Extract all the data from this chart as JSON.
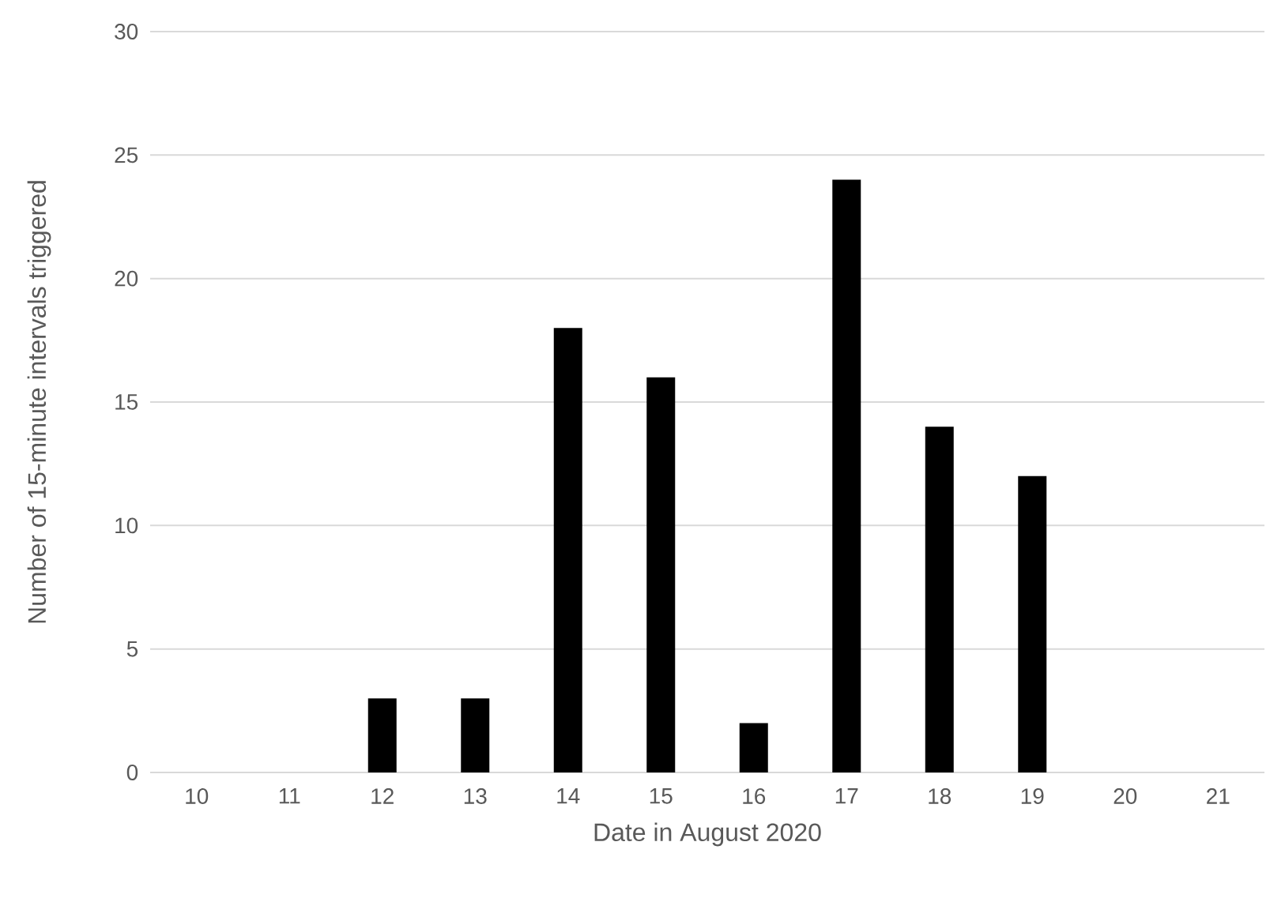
{
  "chart_data": {
    "type": "bar",
    "xlabel": "Date in August 2020",
    "ylabel": "Number of 15-minute intervals triggered",
    "categories": [
      "10",
      "11",
      "12",
      "13",
      "14",
      "15",
      "16",
      "17",
      "18",
      "19",
      "20",
      "21"
    ],
    "values": [
      0,
      0,
      3,
      3,
      18,
      16,
      2,
      24,
      14,
      12,
      0,
      0
    ],
    "color": "#000000",
    "ylim": [
      0,
      30
    ],
    "yticks": [
      0,
      5,
      10,
      15,
      20,
      25,
      30
    ],
    "grid": "y"
  }
}
